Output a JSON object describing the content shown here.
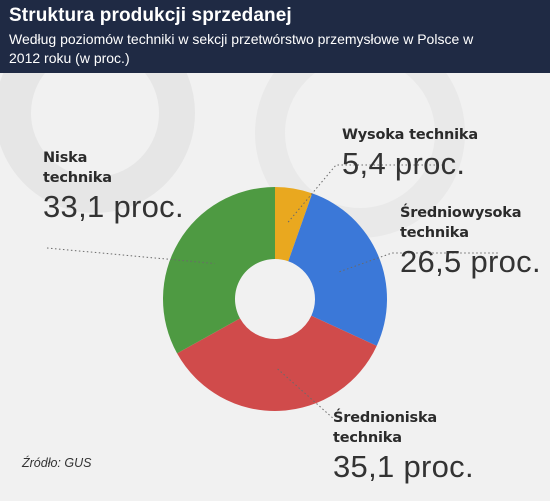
{
  "header": {
    "title": "Struktura produkcji sprzedanej",
    "subtitle": "Według poziomów techniki w sekcji przetwórstwo przemysłowe w Polsce w 2012 roku (w proc.)"
  },
  "colors": {
    "header_bg": "#1f2a44",
    "background": "#f1f1f1",
    "wysoka": "#e9a81f",
    "sredniowysoka": "#3b78d8",
    "sredniona": "#d04b4b",
    "niska": "#4e9a42"
  },
  "chart_data": {
    "type": "pie",
    "donut": true,
    "categories": [
      "Wysoka technika",
      "Średniowysoka technika",
      "Średnioniska technika",
      "Niska technika"
    ],
    "values": [
      5.4,
      26.5,
      35.1,
      33.1
    ],
    "unit": "proc.",
    "title": "Struktura produkcji sprzedanej"
  },
  "labels": [
    {
      "id": "wysoka",
      "name_lines": [
        "Wysoka technika"
      ],
      "value_text": "5,4 proc."
    },
    {
      "id": "sredniowysoka",
      "name_lines": [
        "Średniowysoka",
        "technika"
      ],
      "value_text": "26,5 proc."
    },
    {
      "id": "sredniona",
      "name_lines": [
        "Średnioniska",
        "technika"
      ],
      "value_text": "35,1 proc."
    },
    {
      "id": "niska",
      "name_lines": [
        "Niska",
        "technika"
      ],
      "value_text": "33,1 proc."
    }
  ],
  "source": "Źródło: GUS"
}
